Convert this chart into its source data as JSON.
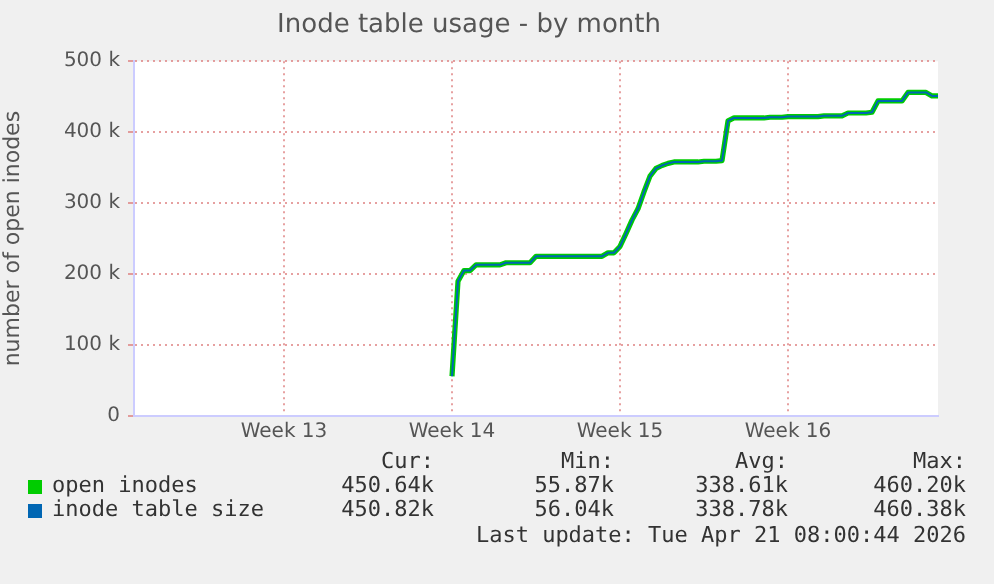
{
  "chart_data": {
    "type": "line",
    "title": "Inode table usage - by month",
    "ylabel": "number of open inodes",
    "categories": [
      null,
      null,
      null,
      null,
      null,
      null,
      null,
      null,
      null,
      null,
      null,
      null,
      null,
      null,
      null,
      null,
      null,
      null,
      null,
      null,
      null,
      null,
      null,
      null,
      null,
      "Week 13",
      null,
      null,
      null,
      null,
      null,
      null,
      null,
      null,
      null,
      null,
      null,
      null,
      null,
      null,
      null,
      null,
      null,
      null,
      null,
      null,
      null,
      null,
      null,
      null,
      null,
      null,
      null,
      "Week 14",
      null,
      null,
      null,
      null,
      null,
      null,
      null,
      null,
      null,
      null,
      null,
      null,
      null,
      null,
      null,
      null,
      null,
      null,
      null,
      null,
      null,
      null,
      null,
      null,
      null,
      null,
      null,
      "Week 15",
      null,
      null,
      null,
      null,
      null,
      null,
      null,
      null,
      null,
      null,
      null,
      null,
      null,
      null,
      null,
      null,
      null,
      null,
      null,
      null,
      null,
      null,
      null,
      null,
      null,
      null,
      null,
      "Week 16",
      null,
      null,
      null,
      null,
      null,
      null,
      null,
      null,
      null,
      null,
      null,
      null,
      null,
      null,
      null,
      null,
      null,
      null,
      null,
      null,
      null,
      null,
      null,
      null,
      null
    ],
    "series": [
      {
        "name": "open inodes",
        "color": "#00cc00",
        "values": [
          null,
          null,
          null,
          null,
          null,
          null,
          null,
          null,
          null,
          null,
          null,
          null,
          null,
          null,
          null,
          null,
          null,
          null,
          null,
          null,
          null,
          null,
          null,
          null,
          null,
          null,
          null,
          null,
          null,
          null,
          null,
          null,
          null,
          null,
          null,
          null,
          null,
          null,
          null,
          null,
          null,
          null,
          null,
          null,
          null,
          null,
          null,
          null,
          null,
          null,
          null,
          null,
          null,
          56000,
          190000,
          205000,
          205000,
          213000,
          213000,
          213000,
          213000,
          213000,
          216000,
          216000,
          216000,
          216000,
          216000,
          225000,
          225000,
          225000,
          225000,
          225000,
          225000,
          225000,
          225000,
          225000,
          225000,
          225000,
          225000,
          230000,
          230000,
          239000,
          257000,
          276000,
          292000,
          316000,
          338000,
          349000,
          353000,
          356000,
          358000,
          358000,
          358000,
          358000,
          358000,
          359000,
          359000,
          359000,
          360000,
          416000,
          420000,
          420000,
          420000,
          420000,
          420000,
          420000,
          421000,
          421000,
          421000,
          422000,
          422000,
          422000,
          422000,
          422000,
          422000,
          423000,
          423000,
          423000,
          423000,
          427000,
          427000,
          427000,
          427000,
          428000,
          444000,
          444000,
          444000,
          444000,
          444000,
          456000,
          456000,
          456000,
          456000,
          451000,
          451000
        ]
      },
      {
        "name": "inode table size",
        "color": "#0066b3",
        "values": [
          null,
          null,
          null,
          null,
          null,
          null,
          null,
          null,
          null,
          null,
          null,
          null,
          null,
          null,
          null,
          null,
          null,
          null,
          null,
          null,
          null,
          null,
          null,
          null,
          null,
          null,
          null,
          null,
          null,
          null,
          null,
          null,
          null,
          null,
          null,
          null,
          null,
          null,
          null,
          null,
          null,
          null,
          null,
          null,
          null,
          null,
          null,
          null,
          null,
          null,
          null,
          null,
          null,
          56000,
          190000,
          205000,
          205000,
          213000,
          213000,
          213000,
          213000,
          213000,
          216000,
          216000,
          216000,
          216000,
          216000,
          225000,
          225000,
          225000,
          225000,
          225000,
          225000,
          225000,
          225000,
          225000,
          225000,
          225000,
          225000,
          230000,
          230000,
          239000,
          257000,
          276000,
          292000,
          316000,
          338000,
          349000,
          353000,
          356000,
          358000,
          358000,
          358000,
          358000,
          358000,
          359000,
          359000,
          359000,
          360000,
          416000,
          420000,
          420000,
          420000,
          420000,
          420000,
          420000,
          421000,
          421000,
          421000,
          422000,
          422000,
          422000,
          422000,
          422000,
          422000,
          423000,
          423000,
          423000,
          423000,
          427000,
          427000,
          427000,
          427000,
          428000,
          444000,
          444000,
          444000,
          444000,
          444000,
          456000,
          456000,
          456000,
          456000,
          451000,
          451000
        ]
      }
    ],
    "ylim": [
      0,
      500000
    ],
    "yticks": [
      {
        "value": 0,
        "label": "0"
      },
      {
        "value": 100000,
        "label": "100 k"
      },
      {
        "value": 200000,
        "label": "200 k"
      },
      {
        "value": 300000,
        "label": "300 k"
      },
      {
        "value": 400000,
        "label": "400 k"
      },
      {
        "value": 500000,
        "label": "500 k"
      }
    ],
    "grid": true,
    "legend": "bottom",
    "marker": "none",
    "line_style": "solid",
    "annotations": [
      "Cur:",
      "Min:",
      "Avg:",
      "Max:",
      "450.64k",
      "55.87k",
      "338.61k",
      "460.20k",
      "450.82k",
      "56.04k",
      "338.78k",
      "460.38k",
      "Last update: Tue Apr 21 08:00:44 2026"
    ]
  }
}
